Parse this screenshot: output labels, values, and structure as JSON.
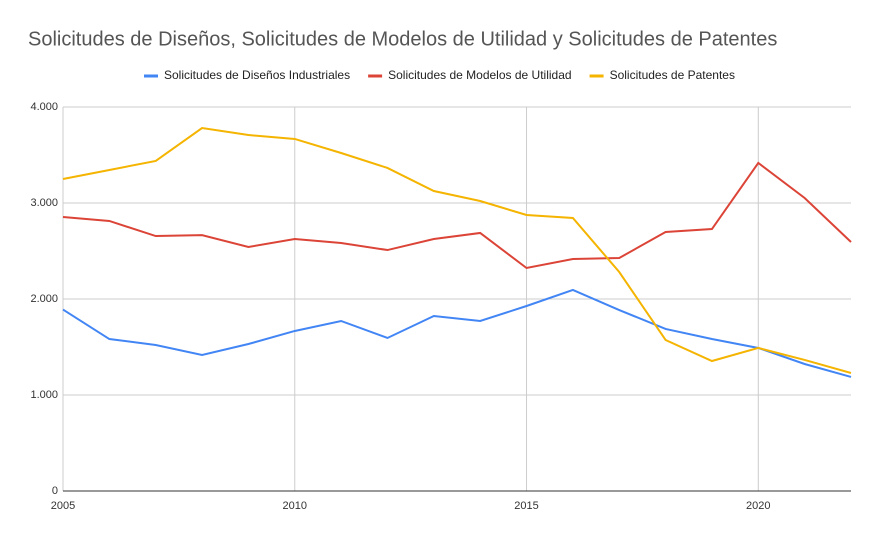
{
  "chart_data": {
    "type": "line",
    "title": "Solicitudes de Diseños, Solicitudes de Modelos de Utilidad  y Solicitudes de Patentes",
    "x": [
      2005,
      2006,
      2007,
      2008,
      2009,
      2010,
      2011,
      2012,
      2013,
      2014,
      2015,
      2016,
      2017,
      2018,
      2019,
      2020,
      2021,
      2022
    ],
    "series": [
      {
        "name": "Solicitudes de Diseños Industriales",
        "color": "#4285f4",
        "values": [
          1890,
          1583,
          1521,
          1417,
          1531,
          1667,
          1771,
          1594,
          1823,
          1771,
          1927,
          2094,
          1885,
          1688,
          1583,
          1490,
          1323,
          1188
        ]
      },
      {
        "name": "Solicitudes de Modelos de Utilidad",
        "color": "#db4437",
        "values": [
          2854,
          2813,
          2656,
          2665,
          2542,
          2625,
          2583,
          2510,
          2625,
          2688,
          2323,
          2417,
          2427,
          2698,
          2729,
          3417,
          3052,
          2594
        ]
      },
      {
        "name": "Solicitudes de Patentes",
        "color": "#f4b400",
        "values": [
          3250,
          3344,
          3438,
          3781,
          3708,
          3667,
          3521,
          3365,
          3125,
          3021,
          2875,
          2844,
          2281,
          1573,
          1354,
          1490,
          1365,
          1229
        ]
      }
    ],
    "xlim": [
      2005,
      2022
    ],
    "xticks": [
      2005,
      2010,
      2015,
      2020
    ],
    "ylim": [
      0,
      4000
    ],
    "yticks": [
      0,
      {
        "value": 1000,
        "label": "1.000"
      },
      {
        "value": 2000,
        "label": "2.000"
      },
      {
        "value": 3000,
        "label": "3.000"
      },
      {
        "value": 4000,
        "label": "4.000"
      }
    ],
    "grid": true,
    "legend": "top"
  }
}
